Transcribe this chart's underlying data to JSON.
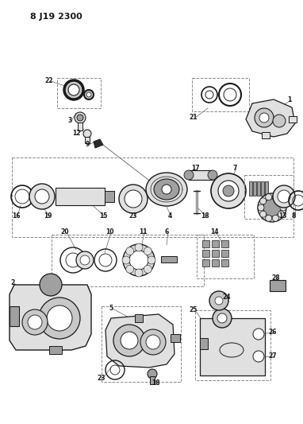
{
  "title": "8 J19 2300",
  "bg": "#ffffff",
  "lc": "#1a1a1a",
  "gray1": "#c8c8c8",
  "gray2": "#e0e0e0",
  "gray3": "#a0a0a0",
  "gray4": "#606060",
  "dashed_color": "#888888",
  "fig_w": 3.82,
  "fig_h": 5.33,
  "dpi": 100
}
